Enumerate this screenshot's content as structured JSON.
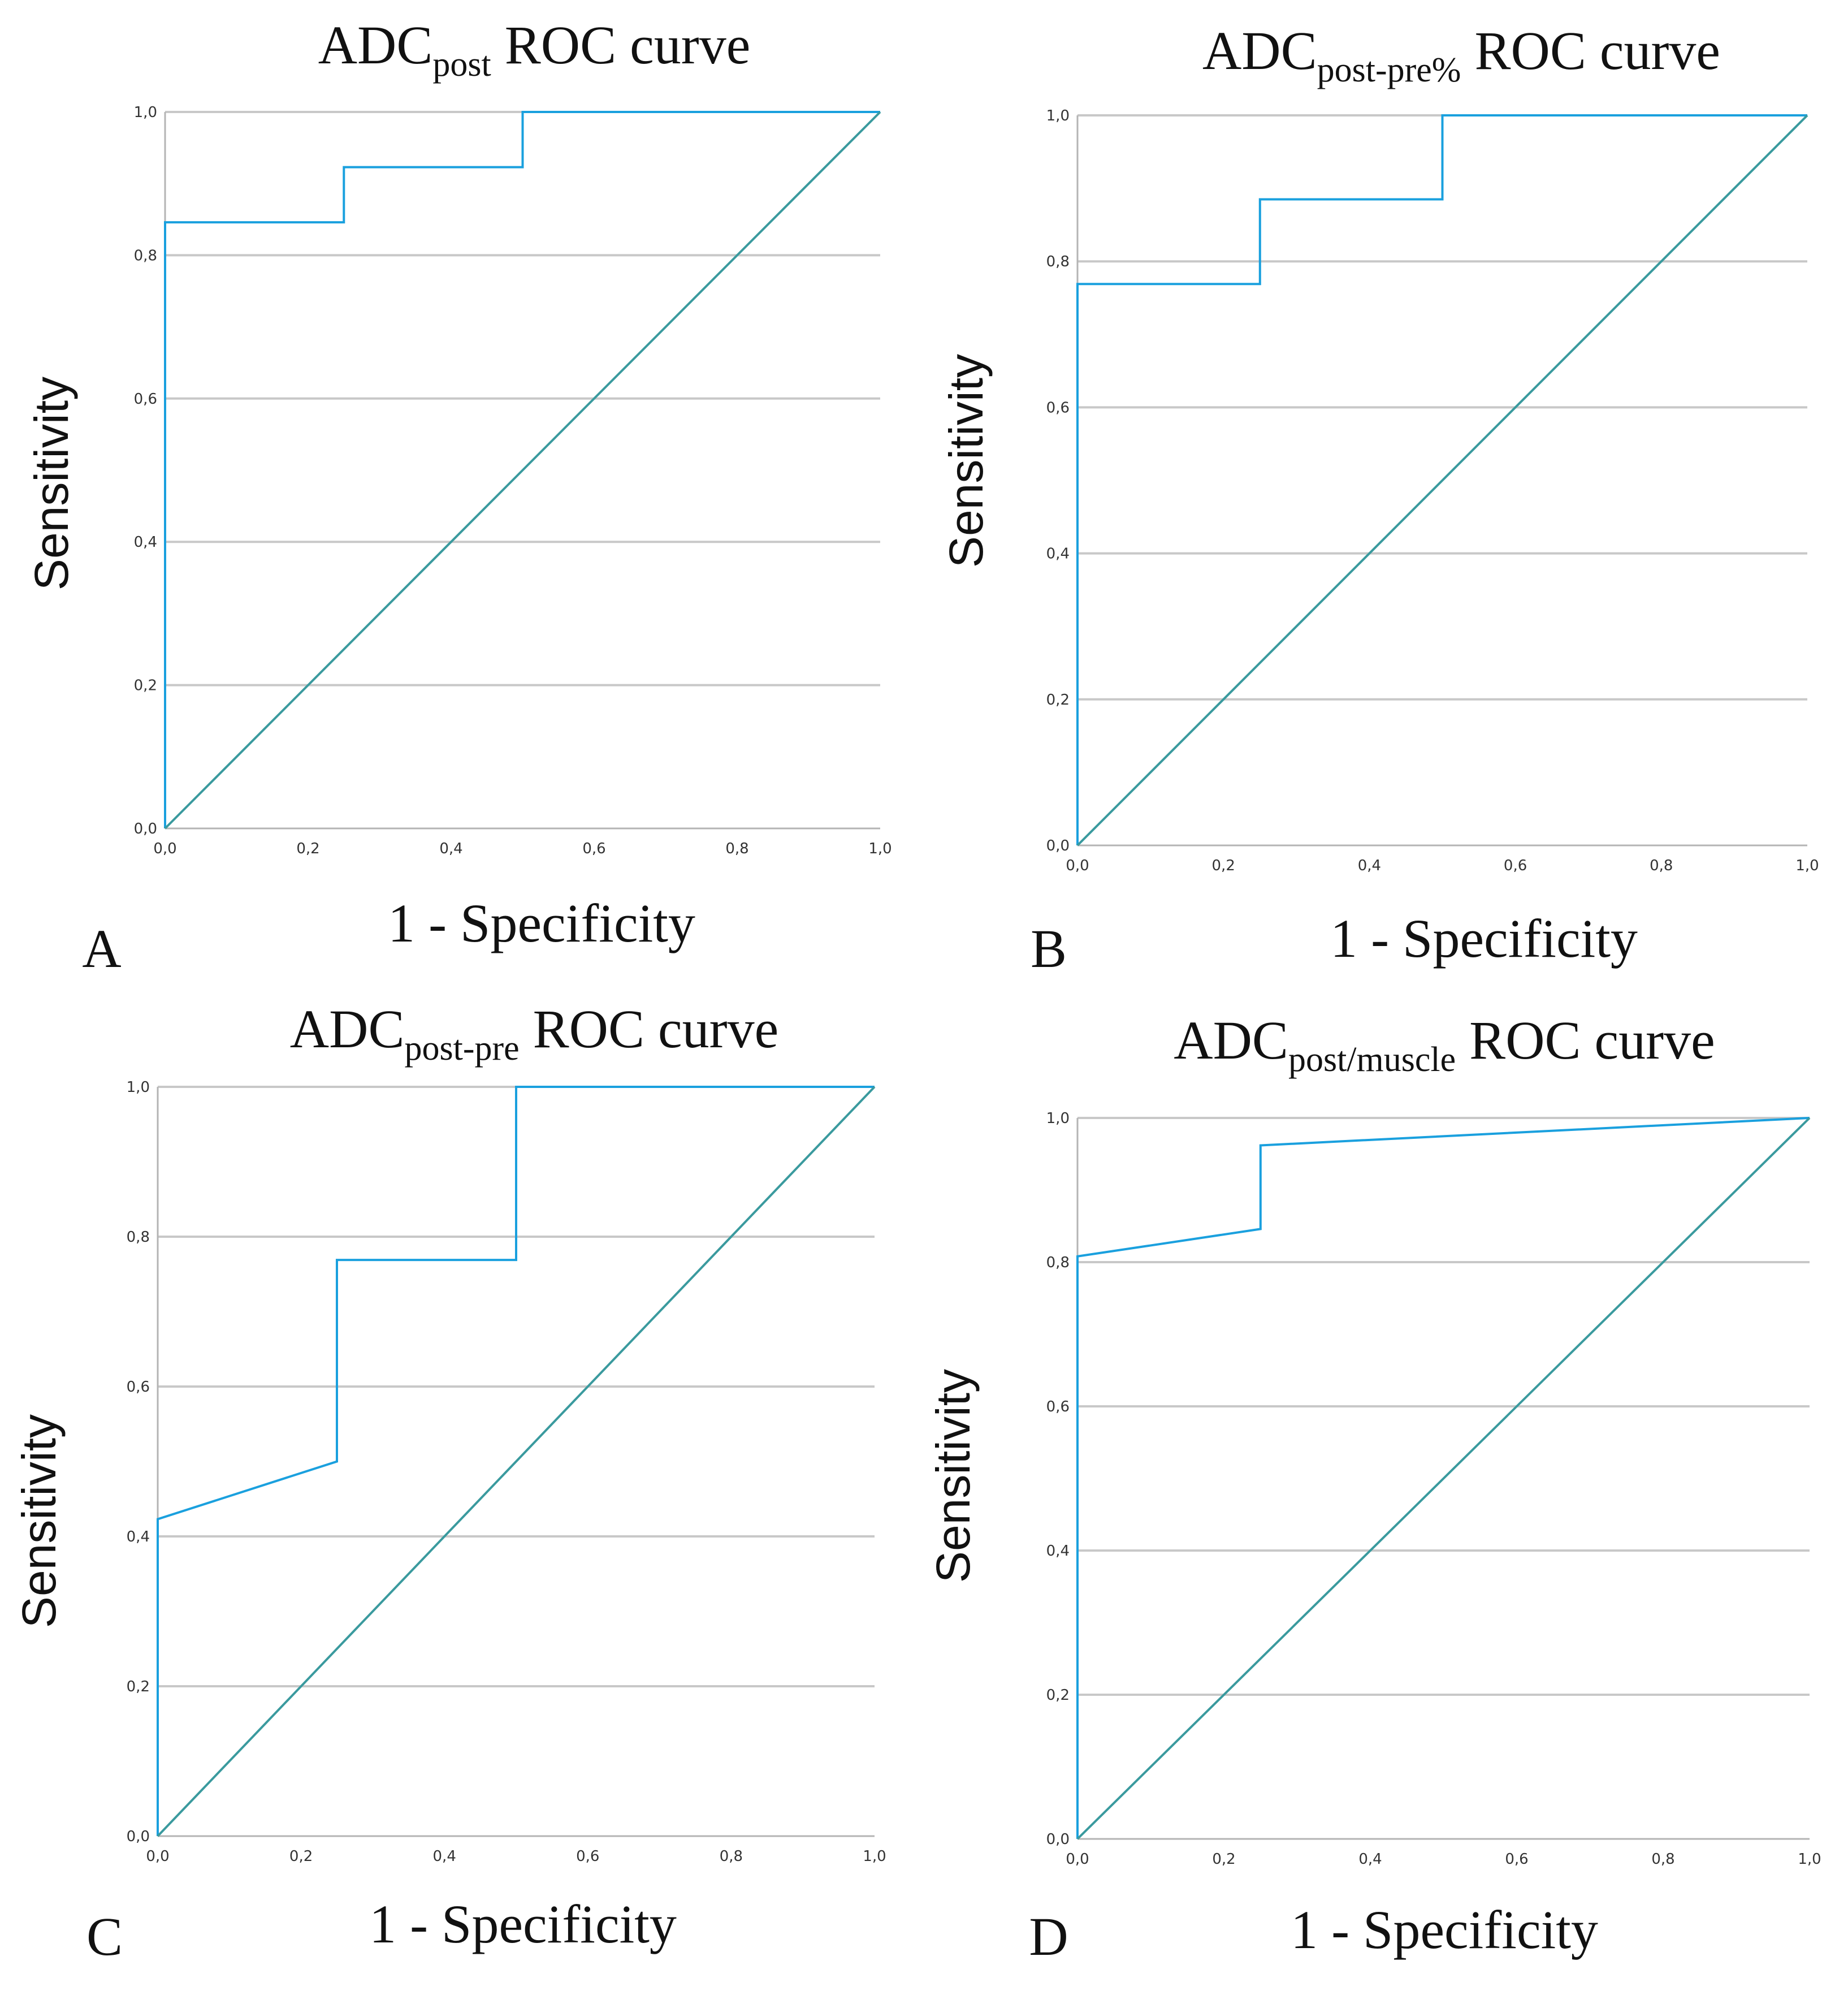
{
  "colors": {
    "roc": "#1aa0de",
    "reference": "#3a9a9e",
    "grid": "#c8c8c8"
  },
  "chart_data": [
    {
      "type": "line",
      "panel_label": "A",
      "title_main": "ADC",
      "title_sub": "post",
      "title_rest": " ROC curve",
      "xlabel": "1 - Specificity",
      "ylabel": "Sensitivity",
      "xlim": [
        0,
        1
      ],
      "ylim": [
        0,
        1
      ],
      "x_ticks": [
        "0,0",
        "0,2",
        "0,4",
        "0,6",
        "0,8",
        "1,0"
      ],
      "y_ticks": [
        "0,0",
        "0,2",
        "0,4",
        "0,6",
        "0,8",
        "1,0"
      ],
      "grid": "horizontal",
      "series": [
        {
          "name": "ROC",
          "x": [
            0,
            0,
            0.25,
            0.25,
            0.5,
            0.5,
            1.0
          ],
          "y": [
            0,
            0.846,
            0.846,
            0.923,
            0.923,
            1.0,
            1.0
          ]
        },
        {
          "name": "Reference Line",
          "x": [
            0,
            1
          ],
          "y": [
            0,
            1
          ]
        }
      ]
    },
    {
      "type": "line",
      "panel_label": "B",
      "title_main": "ADC",
      "title_sub": "post-pre%",
      "title_rest": " ROC curve",
      "xlabel": "1 - Specificity",
      "ylabel": "Sensitivity",
      "xlim": [
        0,
        1
      ],
      "ylim": [
        0,
        1
      ],
      "x_ticks": [
        "0,0",
        "0,2",
        "0,4",
        "0,6",
        "0,8",
        "1,0"
      ],
      "y_ticks": [
        "0,0",
        "0,2",
        "0,4",
        "0,6",
        "0,8",
        "1,0"
      ],
      "grid": "horizontal",
      "series": [
        {
          "name": "ROC",
          "x": [
            0,
            0,
            0.25,
            0.25,
            0.5,
            0.5,
            1.0
          ],
          "y": [
            0,
            0.769,
            0.769,
            0.885,
            0.885,
            1.0,
            1.0
          ]
        },
        {
          "name": "Reference Line",
          "x": [
            0,
            1
          ],
          "y": [
            0,
            1
          ]
        }
      ]
    },
    {
      "type": "line",
      "panel_label": "C",
      "title_main": "ADC",
      "title_sub": "post-pre",
      "title_rest": " ROC curve",
      "xlabel": "1 - Specificity",
      "ylabel": "Sensitivity",
      "xlim": [
        0,
        1
      ],
      "ylim": [
        0,
        1
      ],
      "x_ticks": [
        "0,0",
        "0,2",
        "0,4",
        "0,6",
        "0,8",
        "1,0"
      ],
      "y_ticks": [
        "0,0",
        "0,2",
        "0,4",
        "0,6",
        "0,8",
        "1,0"
      ],
      "grid": "horizontal",
      "series": [
        {
          "name": "ROC",
          "x": [
            0,
            0,
            0.25,
            0.25,
            0.5,
            0.5,
            1.0
          ],
          "y": [
            0,
            0.423,
            0.5,
            0.769,
            0.769,
            1.0,
            1.0
          ]
        },
        {
          "name": "Reference Line",
          "x": [
            0,
            1
          ],
          "y": [
            0,
            1
          ]
        }
      ]
    },
    {
      "type": "line",
      "panel_label": "D",
      "title_main": "ADC",
      "title_sub": "post/muscle",
      "title_rest": " ROC curve",
      "xlabel": "1 - Specificity",
      "ylabel": "Sensitivity",
      "xlim": [
        0,
        1
      ],
      "ylim": [
        0,
        1
      ],
      "x_ticks": [
        "0,0",
        "0,2",
        "0,4",
        "0,6",
        "0,8",
        "1,0"
      ],
      "y_ticks": [
        "0,0",
        "0,2",
        "0,4",
        "0,6",
        "0,8",
        "1,0"
      ],
      "grid": "horizontal",
      "series": [
        {
          "name": "ROC",
          "x": [
            0,
            0,
            0.25,
            0.25,
            1.0
          ],
          "y": [
            0,
            0.808,
            0.846,
            0.962,
            1.0
          ]
        },
        {
          "name": "Reference Line",
          "x": [
            0,
            1
          ],
          "y": [
            0,
            1
          ]
        }
      ]
    }
  ]
}
